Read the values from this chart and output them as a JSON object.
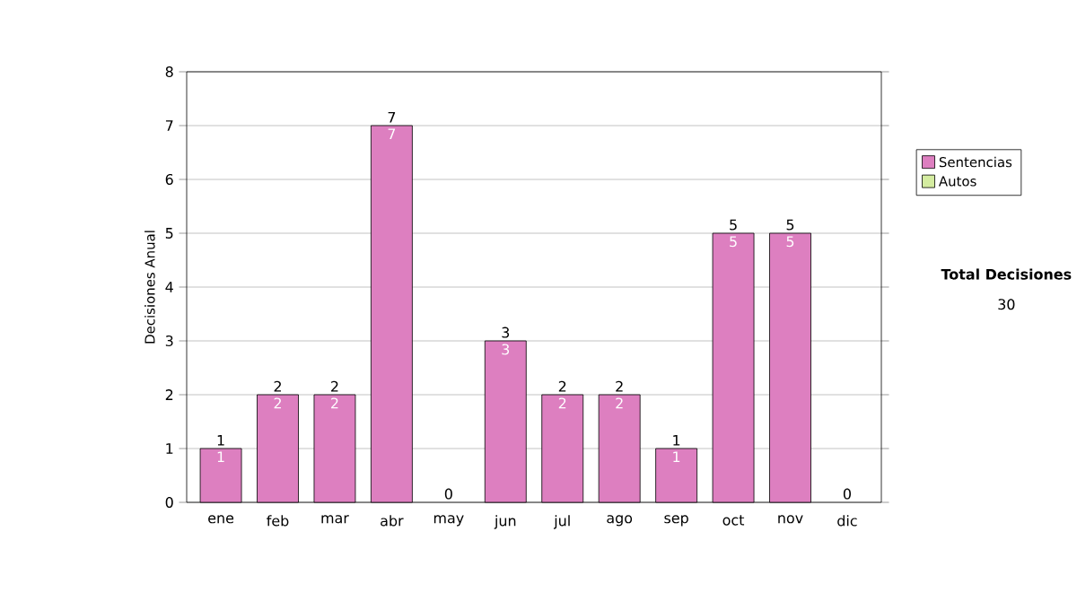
{
  "chart_data": {
    "type": "bar",
    "stacked": true,
    "ylabel": "Decisiones Anual",
    "categories": [
      "ene",
      "feb",
      "mar",
      "abr",
      "may",
      "jun",
      "jul",
      "ago",
      "sep",
      "oct",
      "nov",
      "dic"
    ],
    "series": [
      {
        "name": "Sentencias",
        "color": "#dd7fc0",
        "values": [
          1,
          2,
          2,
          7,
          0,
          3,
          2,
          2,
          1,
          5,
          5,
          0
        ],
        "value_labels": [
          "1",
          "2",
          "2",
          "7",
          null,
          "3",
          "2",
          "2",
          "1",
          "5",
          "5",
          null
        ]
      },
      {
        "name": "Autos",
        "color": "#d4eca0",
        "values": [
          0,
          0,
          0,
          0,
          0,
          0,
          0,
          0,
          0,
          0,
          0,
          0
        ]
      }
    ],
    "totals": [
      "1",
      "2",
      "2",
      "7",
      "0",
      "3",
      "2",
      "2",
      "1",
      "5",
      "5",
      "0"
    ],
    "ylim": [
      0,
      8
    ],
    "yticks": [
      0,
      1,
      2,
      3,
      4,
      5,
      6,
      7,
      8
    ],
    "grid": "y",
    "legend": "right",
    "annotations": [
      "Total Decisiones",
      "30"
    ]
  }
}
